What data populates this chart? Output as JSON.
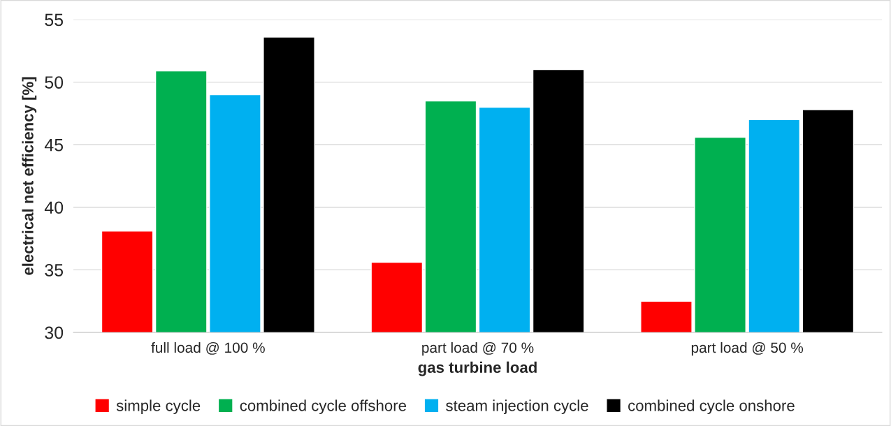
{
  "chart_data": {
    "type": "bar",
    "xlabel": "gas turbine load",
    "ylabel": "electrical net efficiency [%]",
    "categories": [
      "full load @ 100 %",
      "part load @ 70 %",
      "part load @ 50 %"
    ],
    "series": [
      {
        "name": "simple cycle",
        "color": "#ff0000",
        "values": [
          38.1,
          35.6,
          32.5
        ]
      },
      {
        "name": "combined cycle offshore",
        "color": "#00b050",
        "values": [
          50.9,
          48.5,
          45.6
        ]
      },
      {
        "name": "steam injection cycle",
        "color": "#00b0f0",
        "values": [
          49.0,
          48.0,
          47.0
        ]
      },
      {
        "name": "combined cycle onshore",
        "color": "#000000",
        "values": [
          53.6,
          51.0,
          47.8
        ]
      }
    ],
    "ylim": [
      30,
      55
    ],
    "yticks": [
      30,
      35,
      40,
      45,
      50,
      55
    ],
    "grid": "y",
    "legend": "bottom"
  }
}
